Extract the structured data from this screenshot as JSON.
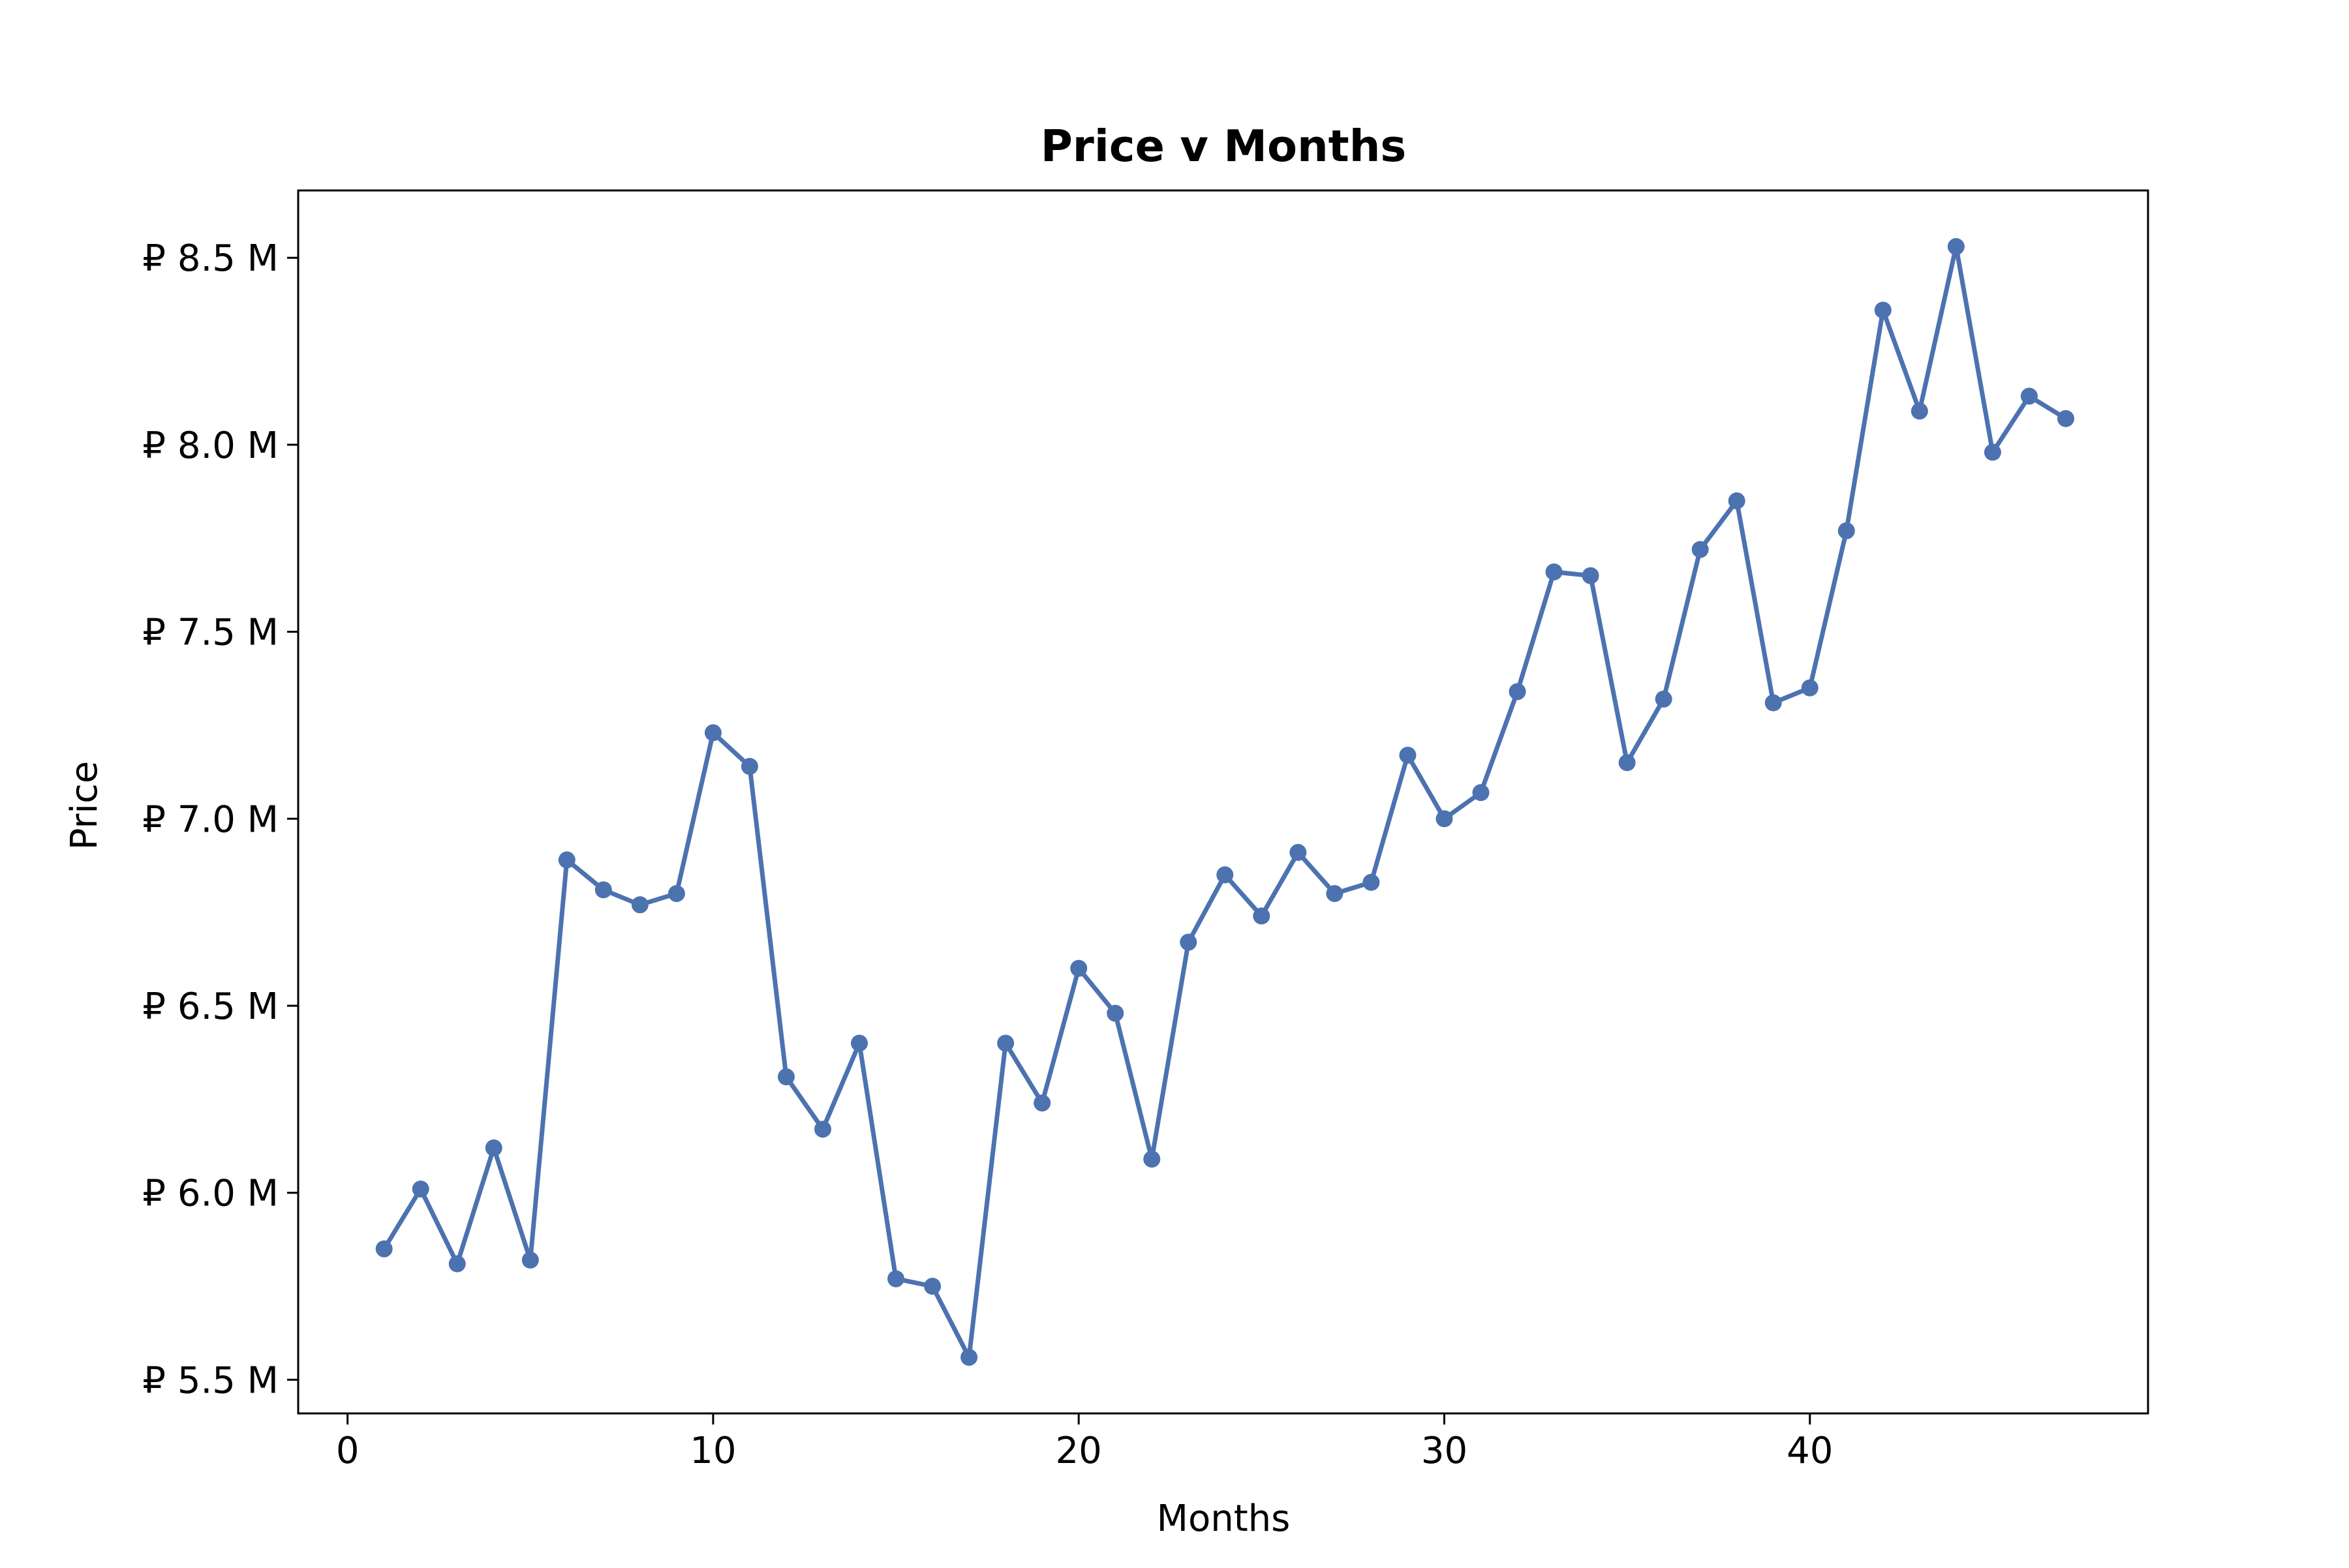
{
  "chart_data": {
    "type": "line",
    "title": "Price v Months",
    "xlabel": "Months",
    "ylabel": "Price",
    "xlim": [
      -1.35,
      49.25
    ],
    "ylim": [
      5.41,
      8.68
    ],
    "x_ticks": [
      0,
      10,
      20,
      30,
      40
    ],
    "x_tick_labels": [
      "0",
      "10",
      "20",
      "30",
      "40"
    ],
    "y_ticks": [
      5.5,
      6.0,
      6.5,
      7.0,
      7.5,
      8.0,
      8.5
    ],
    "y_tick_labels": [
      "₽ 5.5 M",
      "₽ 6.0 M",
      "₽ 6.5 M",
      "₽ 7.0 M",
      "₽ 7.5 M",
      "₽ 8.0 M",
      "₽ 8.5 M"
    ],
    "grid": false,
    "legend": false,
    "color": "#4c72b0",
    "x": [
      1,
      2,
      3,
      4,
      5,
      6,
      7,
      8,
      9,
      10,
      11,
      12,
      13,
      14,
      15,
      16,
      17,
      18,
      19,
      20,
      21,
      22,
      23,
      24,
      25,
      26,
      27,
      28,
      29,
      30,
      31,
      32,
      33,
      34,
      35,
      36,
      37,
      38,
      39,
      40,
      41,
      42,
      43,
      44,
      45,
      46,
      47
    ],
    "values": [
      5.85,
      6.01,
      5.81,
      6.12,
      5.82,
      6.89,
      6.81,
      6.77,
      6.8,
      7.23,
      7.14,
      6.31,
      6.17,
      6.4,
      5.77,
      5.75,
      5.56,
      6.4,
      6.24,
      6.6,
      6.48,
      6.09,
      6.67,
      6.85,
      6.74,
      6.91,
      6.8,
      6.83,
      7.17,
      7.0,
      7.07,
      7.34,
      7.66,
      7.65,
      7.15,
      7.32,
      7.72,
      7.85,
      7.31,
      7.35,
      7.77,
      8.36,
      8.09,
      8.53,
      7.98,
      8.13,
      8.07
    ]
  }
}
